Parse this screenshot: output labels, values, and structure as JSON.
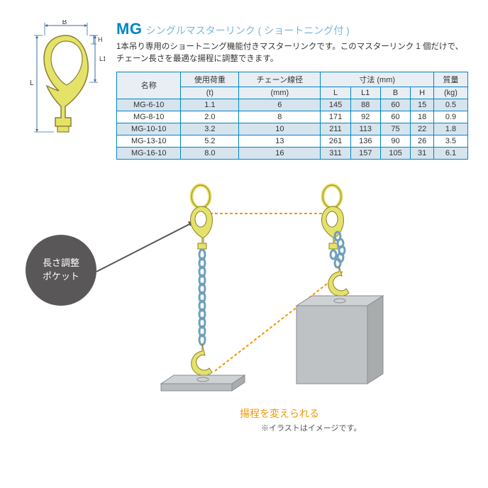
{
  "title": {
    "mg": "MG",
    "sub": "シングルマスターリンク ( ショートニング付 )"
  },
  "description": "1本吊り専用のショートニング機能付きマスターリンクです。このマスターリンク 1 個だけで、チェーン長さを最適な揚程に調整できます。",
  "diagram_labels": {
    "B": "B",
    "H": "H",
    "L": "L",
    "L1": "L1"
  },
  "table": {
    "headers": {
      "name": "名称",
      "load": "使用荷重",
      "load_unit": "(t)",
      "chain": "チェーン線径",
      "chain_unit": "(mm)",
      "dims": "寸法 (mm)",
      "L": "L",
      "L1": "L1",
      "Bcol": "B",
      "Hcol": "H",
      "mass": "質量",
      "mass_unit": "(kg)"
    },
    "rows": [
      {
        "name": "MG-6-10",
        "load": "1.1",
        "chain": "6",
        "L": "145",
        "L1": "88",
        "B": "60",
        "H": "15",
        "mass": "0.5",
        "hl": true
      },
      {
        "name": "MG-8-10",
        "load": "2.0",
        "chain": "8",
        "L": "171",
        "L1": "92",
        "B": "60",
        "H": "18",
        "mass": "0.9",
        "hl": false
      },
      {
        "name": "MG-10-10",
        "load": "3.2",
        "chain": "10",
        "L": "211",
        "L1": "113",
        "B": "75",
        "H": "22",
        "mass": "1.8",
        "hl": true
      },
      {
        "name": "MG-13-10",
        "load": "5.2",
        "chain": "13",
        "L": "261",
        "L1": "136",
        "B": "90",
        "H": "26",
        "mass": "3.5",
        "hl": false
      },
      {
        "name": "MG-16-10",
        "load": "8.0",
        "chain": "16",
        "L": "311",
        "L1": "157",
        "B": "105",
        "H": "31",
        "mass": "6.1",
        "hl": true
      }
    ]
  },
  "badge_text": "長さ調整\nポケット",
  "caption_orange": "揚程を変えられる",
  "caption_note": "※イラストはイメージです。",
  "colors": {
    "accent": "#0085c7",
    "sub": "#7bb6d8",
    "orange": "#f29600",
    "hook_yellow": "#e5e26a",
    "hook_stroke": "#8a7f2f",
    "chain": "#6fa0b8",
    "badge": "#595757",
    "row_hl": "#d6e4ee",
    "header_bg": "#e8eef4",
    "load_gray": "#cfd2d4",
    "load_stroke": "#8a8c8d",
    "dimline": "#3b6ea5"
  }
}
